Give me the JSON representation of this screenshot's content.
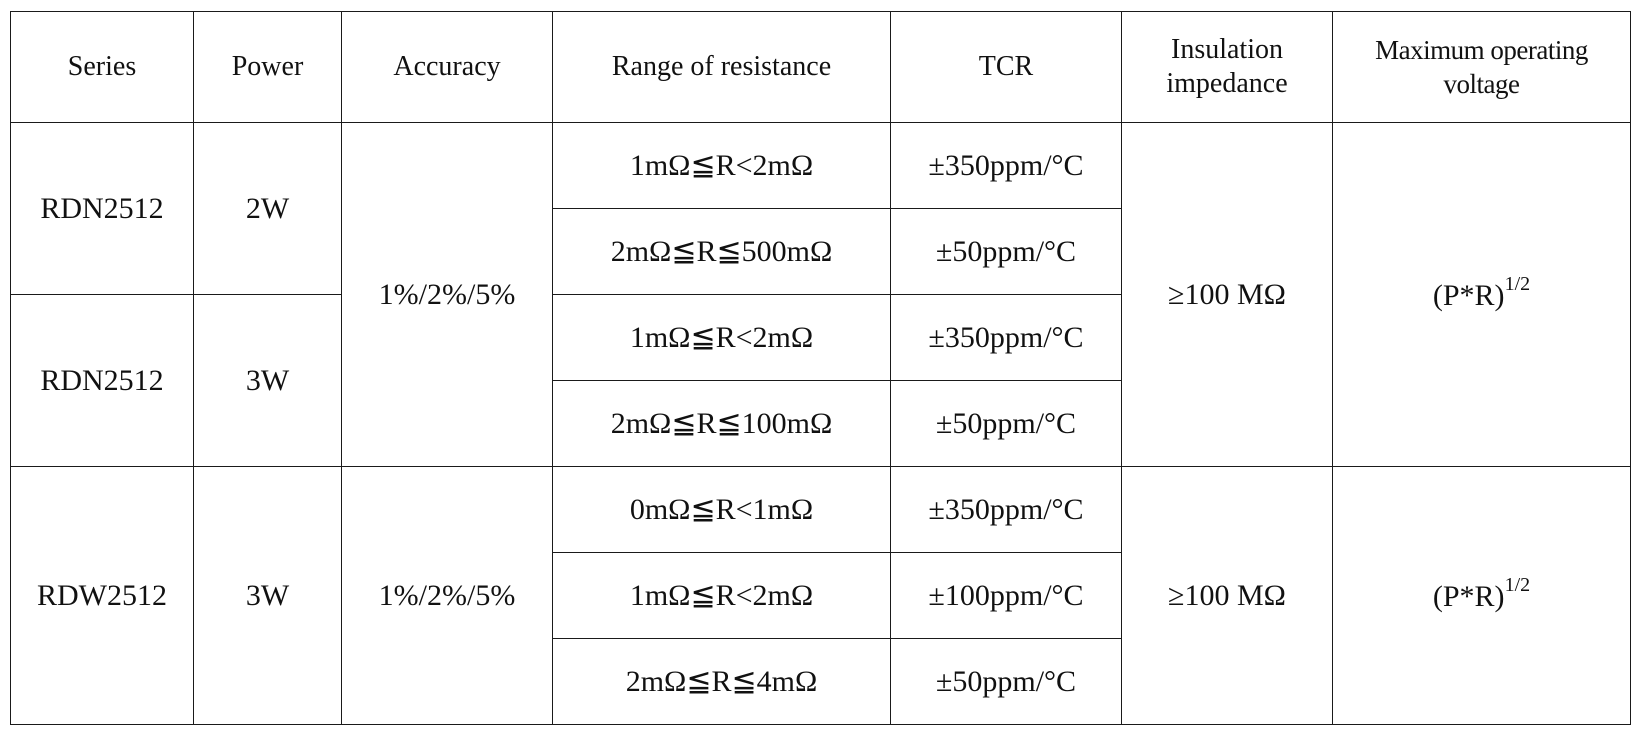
{
  "headers": {
    "series": "Series",
    "power": "Power",
    "accuracy": "Accuracy",
    "range": "Range of resistance",
    "tcr": "TCR",
    "insulation_line1": "Insulation",
    "insulation_line2": "impedance",
    "max_voltage_line1": "Maximum operating",
    "max_voltage_line2": "voltage"
  },
  "groups": [
    {
      "accuracy": "1%/2%/5%",
      "insulation": "≥100 MΩ",
      "max_voltage_base": "(P*R)",
      "max_voltage_exponent": "1/2",
      "series": [
        {
          "name": "RDN2512",
          "power": "2W",
          "rows": [
            {
              "range": "1mΩ≦R<2mΩ",
              "tcr": "±350ppm/°C"
            },
            {
              "range": "2mΩ≦R≦500mΩ",
              "tcr": "±50ppm/°C"
            }
          ]
        },
        {
          "name": "RDN2512",
          "power": "3W",
          "rows": [
            {
              "range": "1mΩ≦R<2mΩ",
              "tcr": "±350ppm/°C"
            },
            {
              "range": "2mΩ≦R≦100mΩ",
              "tcr": "±50ppm/°C"
            }
          ]
        }
      ]
    },
    {
      "accuracy": "1%/2%/5%",
      "insulation": "≥100 MΩ",
      "max_voltage_base": "(P*R)",
      "max_voltage_exponent": "1/2",
      "series": [
        {
          "name": "RDW2512",
          "power": "3W",
          "rows": [
            {
              "range": "0mΩ≦R<1mΩ",
              "tcr": "±350ppm/°C"
            },
            {
              "range": "1mΩ≦R<2mΩ",
              "tcr": "±100ppm/°C"
            },
            {
              "range": "2mΩ≦R≦4mΩ",
              "tcr": "±50ppm/°C"
            }
          ]
        }
      ]
    }
  ]
}
